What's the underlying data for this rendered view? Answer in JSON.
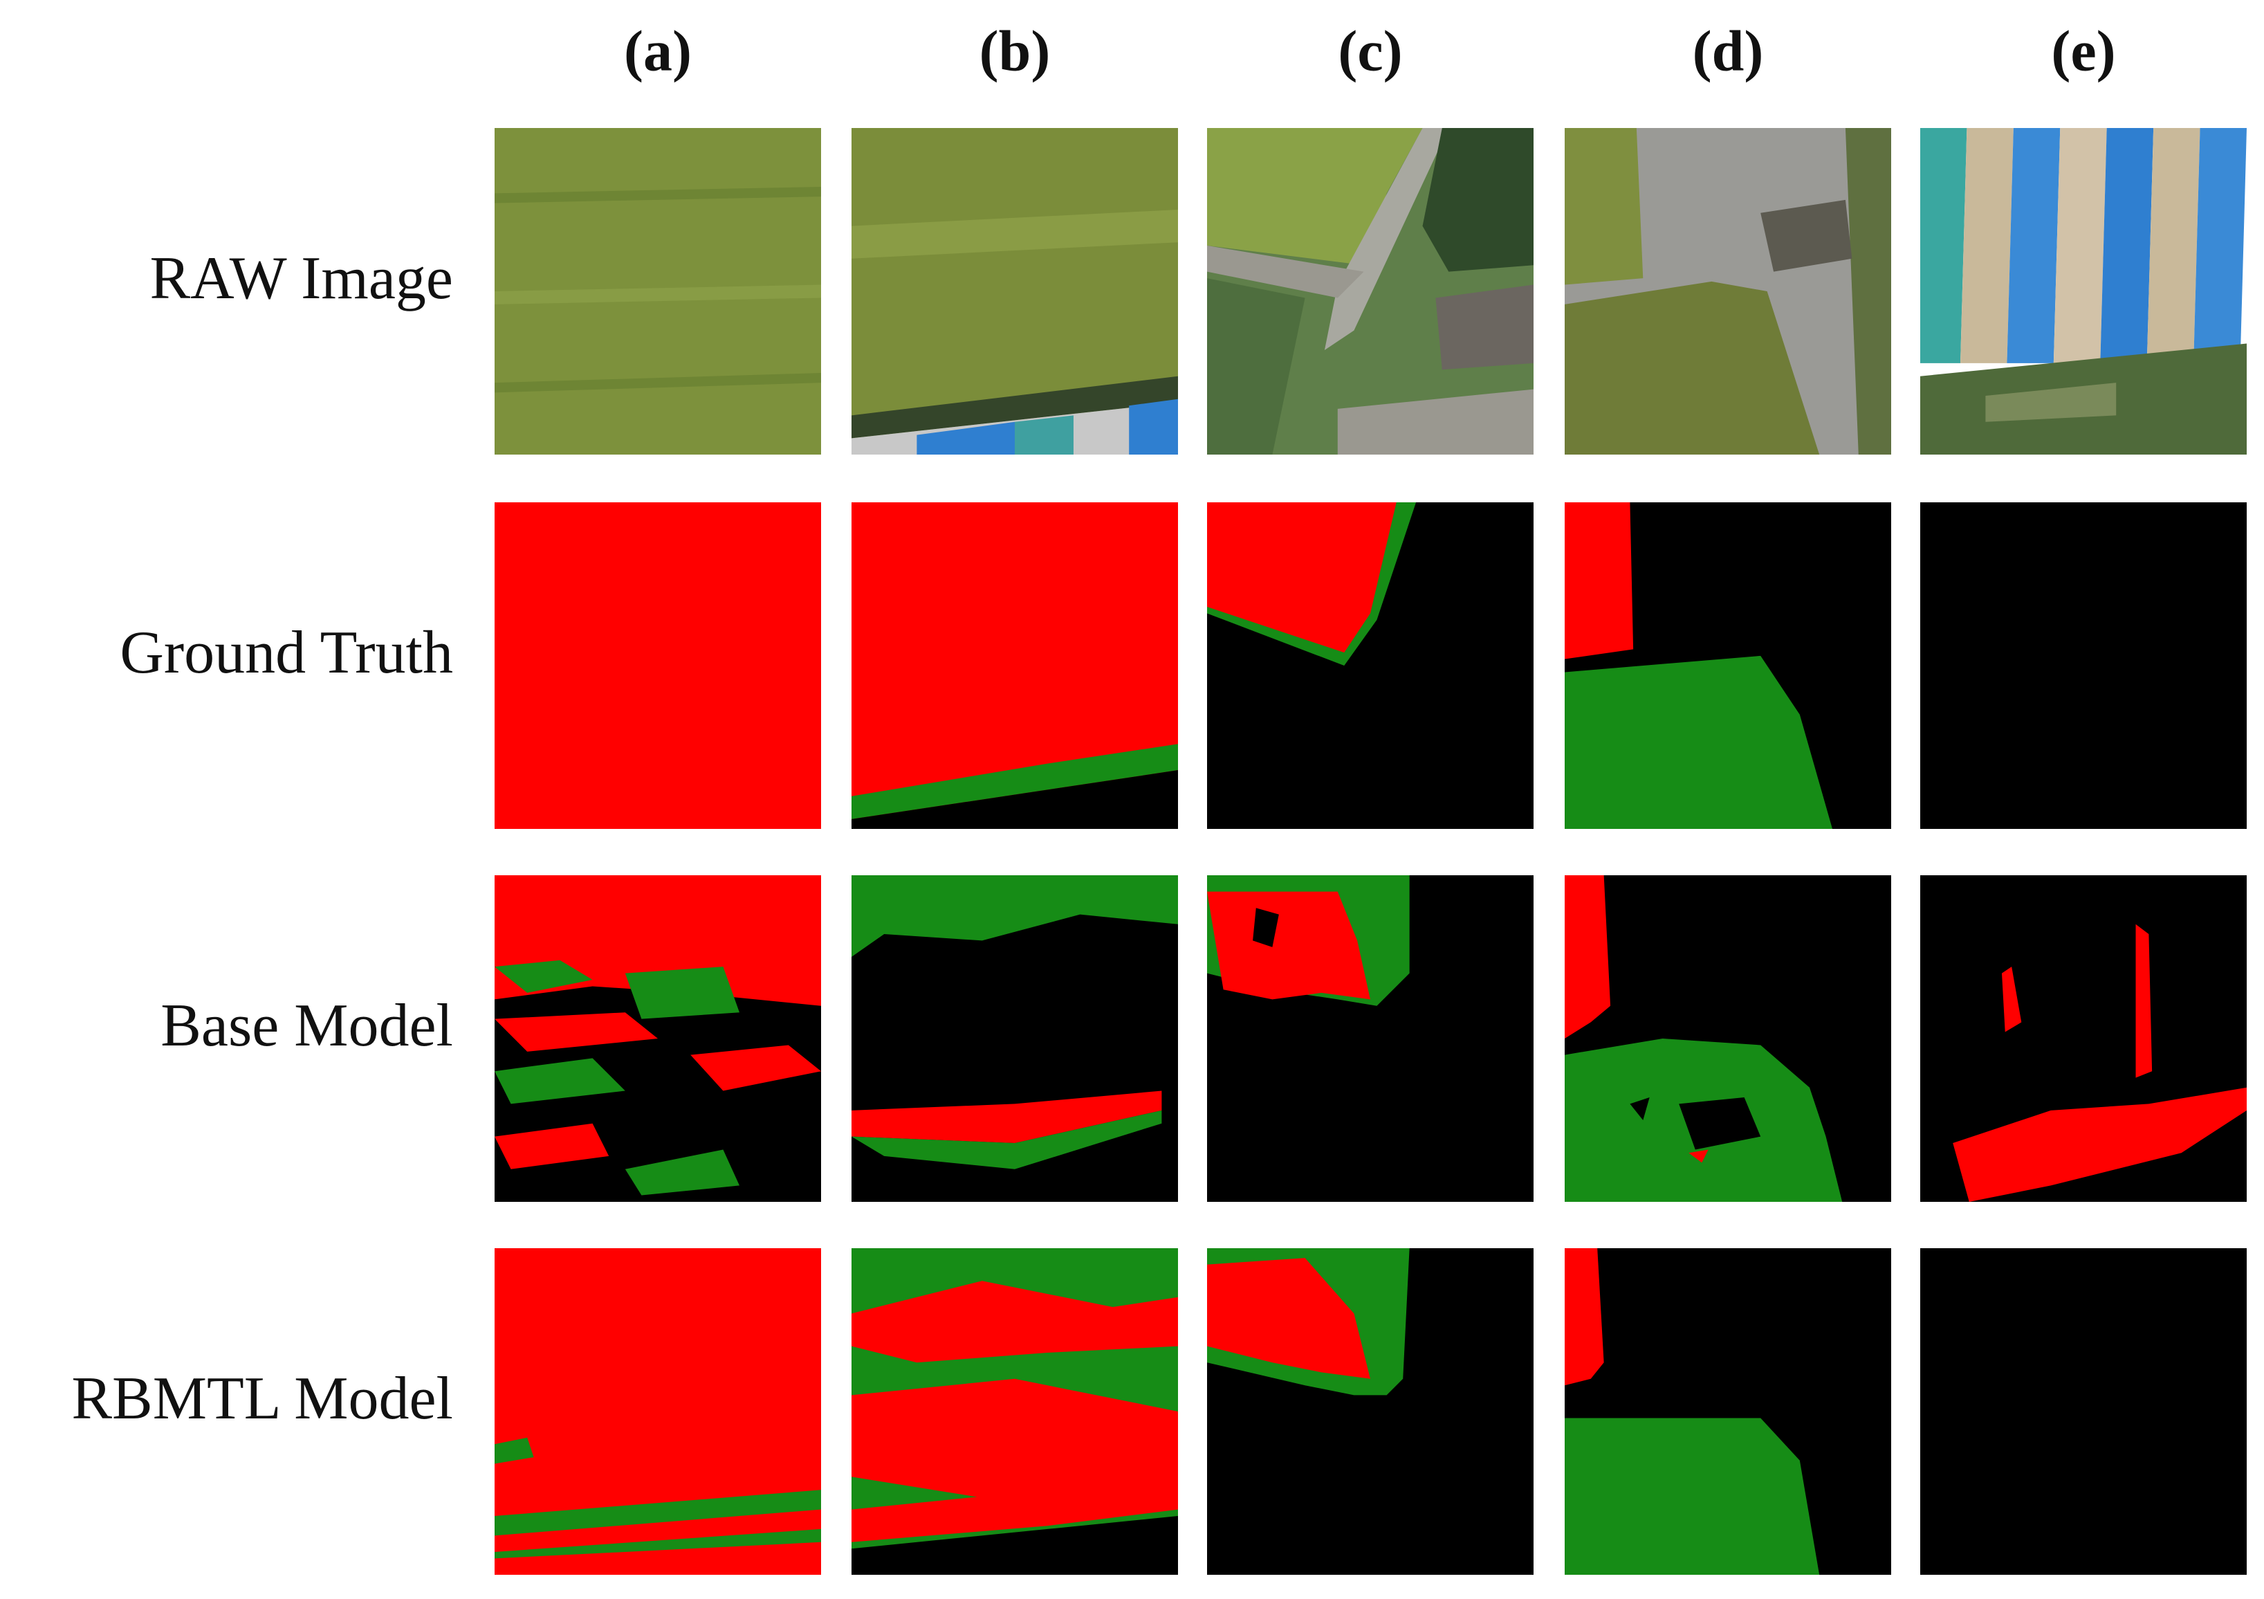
{
  "columns": [
    "(a)",
    "(b)",
    "(c)",
    "(d)",
    "(e)"
  ],
  "rows": [
    "RAW Image",
    "Ground Truth",
    "Base Model",
    "RBMTL Model"
  ]
}
